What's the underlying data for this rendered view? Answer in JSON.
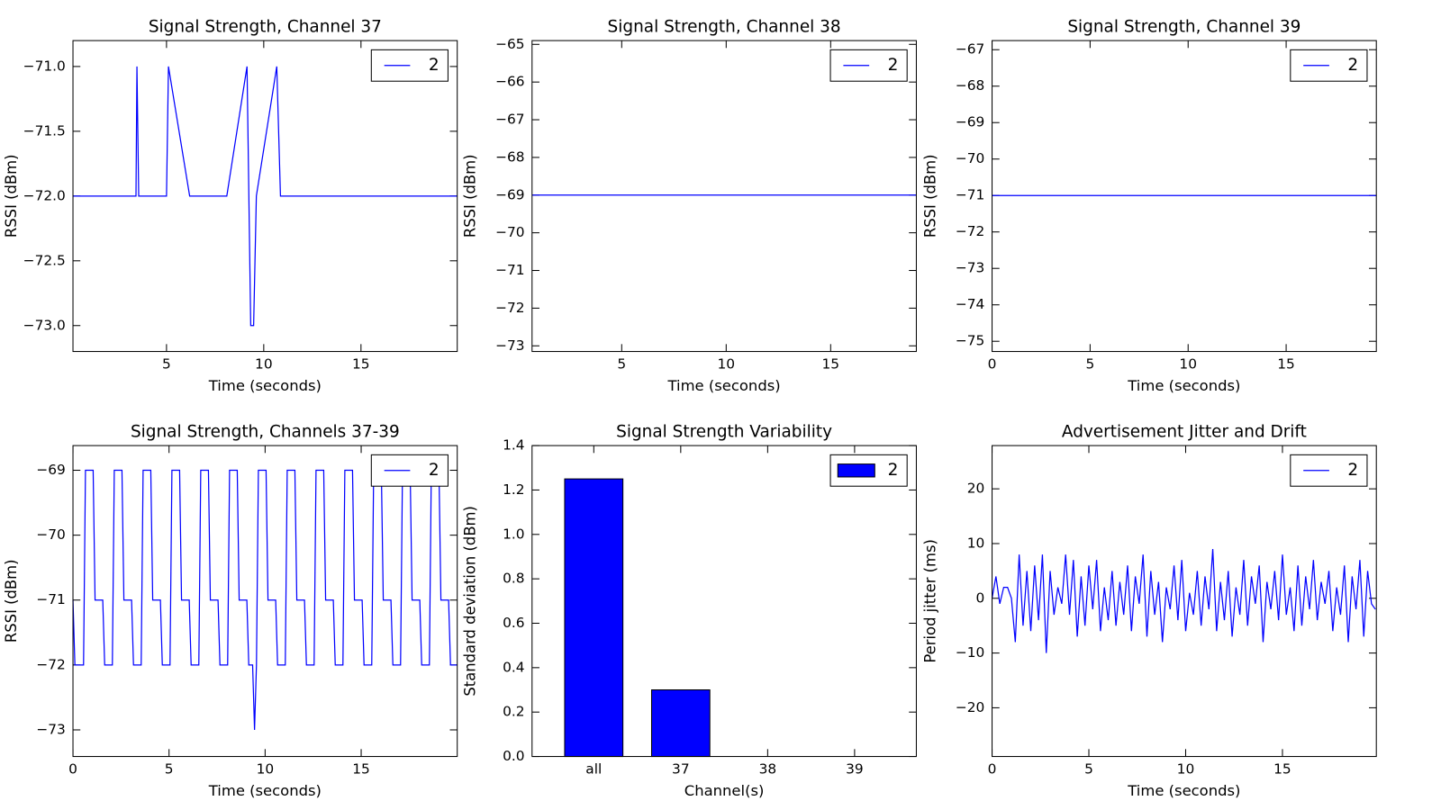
{
  "chart_data": [
    {
      "type": "line",
      "title": "Signal Strength, Channel 37",
      "xlabel": "Time (seconds)",
      "ylabel": "RSSI (dBm)",
      "x": [
        0.19,
        3.43,
        3.48,
        3.57,
        5.0,
        5.1,
        6.19,
        8.1,
        9.14,
        9.33,
        9.48,
        9.62,
        10.67,
        10.86,
        19.95
      ],
      "series": [
        {
          "name": "2",
          "color": "#0000ff",
          "values": [
            -72,
            -72,
            -71,
            -72,
            -72,
            -71,
            -72,
            -72,
            -71,
            -73,
            -73,
            -72,
            -71,
            -72,
            -72
          ]
        }
      ],
      "xlim": [
        0.19,
        19.95
      ],
      "xticks": [
        5,
        10,
        15
      ],
      "ylim": [
        -73.2,
        -70.8
      ],
      "yticks": [
        {
          "value": -71,
          "label": "−71.0"
        },
        {
          "value": -71.5,
          "label": "−71.5"
        },
        {
          "value": -72,
          "label": "−72.0"
        },
        {
          "value": -72.5,
          "label": "−72.5"
        },
        {
          "value": -73,
          "label": "−73.0"
        }
      ],
      "legend": "upper right"
    },
    {
      "type": "line",
      "title": "Signal Strength, Channel 38",
      "xlabel": "Time (seconds)",
      "ylabel": "RSSI (dBm)",
      "x": [
        0.71,
        19.1
      ],
      "series": [
        {
          "name": "2",
          "color": "#0000ff",
          "values": [
            -69,
            -69
          ]
        }
      ],
      "xlim": [
        0.71,
        19.1
      ],
      "xticks": [
        5,
        10,
        15
      ],
      "ylim": [
        -73.15,
        -64.9
      ],
      "yticks": [
        {
          "value": -65,
          "label": "−65"
        },
        {
          "value": -66,
          "label": "−66"
        },
        {
          "value": -67,
          "label": "−67"
        },
        {
          "value": -68,
          "label": "−68"
        },
        {
          "value": -69,
          "label": "−69"
        },
        {
          "value": -70,
          "label": "−70"
        },
        {
          "value": -71,
          "label": "−71"
        },
        {
          "value": -72,
          "label": "−72"
        },
        {
          "value": -73,
          "label": "−73"
        }
      ],
      "legend": "upper right"
    },
    {
      "type": "line",
      "title": "Signal Strength, Channel 39",
      "xlabel": "Time (seconds)",
      "ylabel": "RSSI (dBm)",
      "x": [
        0,
        19.6
      ],
      "series": [
        {
          "name": "2",
          "color": "#0000ff",
          "values": [
            -71,
            -71
          ]
        }
      ],
      "xlim": [
        0,
        19.6
      ],
      "xticks": [
        0,
        5,
        10,
        15
      ],
      "ylim": [
        -75.28,
        -66.75
      ],
      "yticks": [
        {
          "value": -67,
          "label": "−67"
        },
        {
          "value": -68,
          "label": "−68"
        },
        {
          "value": -69,
          "label": "−69"
        },
        {
          "value": -70,
          "label": "−70"
        },
        {
          "value": -71,
          "label": "−71"
        },
        {
          "value": -72,
          "label": "−72"
        },
        {
          "value": -73,
          "label": "−73"
        },
        {
          "value": -74,
          "label": "−74"
        },
        {
          "value": -75,
          "label": "−75"
        }
      ],
      "legend": "upper right"
    },
    {
      "type": "line",
      "title": "Signal Strength, Channels 37-39",
      "xlabel": "Time (seconds)",
      "ylabel": "RSSI (dBm)",
      "x": [
        0,
        0.1,
        0.55,
        0.65,
        1.05,
        1.15,
        1.55,
        1.65,
        2.05,
        2.15,
        2.55,
        2.65,
        3.05,
        3.15,
        3.55,
        3.65,
        4.05,
        4.15,
        4.55,
        4.65,
        5.05,
        5.15,
        5.55,
        5.65,
        6.05,
        6.15,
        6.55,
        6.65,
        7.05,
        7.15,
        7.55,
        7.65,
        8.05,
        8.15,
        8.55,
        8.65,
        9.05,
        9.15,
        9.35,
        9.45,
        9.55,
        9.65,
        10.05,
        10.15,
        10.55,
        10.65,
        11.05,
        11.15,
        11.55,
        11.65,
        12.05,
        12.15,
        12.55,
        12.65,
        13.05,
        13.15,
        13.55,
        13.65,
        14.05,
        14.15,
        14.55,
        14.65,
        15.05,
        15.15,
        15.55,
        15.65,
        16.05,
        16.15,
        16.55,
        16.65,
        17.05,
        17.15,
        17.55,
        17.65,
        18.05,
        18.15,
        18.55,
        18.65,
        19.05,
        19.15,
        19.55,
        19.65,
        20.0
      ],
      "series": [
        {
          "name": "2",
          "color": "#0000ff",
          "values": [
            -71,
            -72,
            -72,
            -69,
            -69,
            -71,
            -71,
            -72,
            -72,
            -69,
            -69,
            -71,
            -71,
            -72,
            -72,
            -69,
            -69,
            -71,
            -71,
            -72,
            -72,
            -69,
            -69,
            -71,
            -71,
            -72,
            -72,
            -69,
            -69,
            -71,
            -71,
            -72,
            -72,
            -69,
            -69,
            -71,
            -71,
            -72,
            -72,
            -73,
            -72,
            -69,
            -69,
            -71,
            -71,
            -72,
            -72,
            -69,
            -69,
            -71,
            -71,
            -72,
            -72,
            -69,
            -69,
            -71,
            -71,
            -72,
            -72,
            -69,
            -69,
            -71,
            -71,
            -72,
            -72,
            -69,
            -69,
            -71,
            -71,
            -72,
            -72,
            -69,
            -69,
            -71,
            -71,
            -72,
            -72,
            -69,
            -69,
            -71,
            -71,
            -72,
            -72
          ]
        }
      ],
      "xlim": [
        0,
        20.0
      ],
      "xticks": [
        0,
        5,
        10,
        15
      ],
      "ylim": [
        -73.41,
        -68.62
      ],
      "yticks": [
        {
          "value": -69,
          "label": "−69"
        },
        {
          "value": -70,
          "label": "−70"
        },
        {
          "value": -71,
          "label": "−71"
        },
        {
          "value": -72,
          "label": "−72"
        },
        {
          "value": -73,
          "label": "−73"
        }
      ],
      "legend": "upper right"
    },
    {
      "type": "bar",
      "title": "Signal Strength Variability",
      "xlabel": "Channel(s)",
      "ylabel": "Standard deviation (dBm)",
      "categories": [
        "all",
        "37",
        "38",
        "39"
      ],
      "series": [
        {
          "name": "2",
          "color": "#0000ff",
          "values": [
            1.25,
            0.3,
            0,
            0
          ]
        }
      ],
      "ylim": [
        0,
        1.4
      ],
      "yticks": [
        {
          "value": 0,
          "label": "0.0"
        },
        {
          "value": 0.2,
          "label": "0.2"
        },
        {
          "value": 0.4,
          "label": "0.4"
        },
        {
          "value": 0.6,
          "label": "0.6"
        },
        {
          "value": 0.8,
          "label": "0.8"
        },
        {
          "value": 1,
          "label": "1.0"
        },
        {
          "value": 1.2,
          "label": "1.2"
        },
        {
          "value": 1.4,
          "label": "1.4"
        }
      ],
      "legend": "upper right"
    },
    {
      "type": "line",
      "title": "Advertisement Jitter and Drift",
      "xlabel": "Time (seconds)",
      "ylabel": "Period jitter (ms)",
      "x": [
        0,
        0.2,
        0.4,
        0.6,
        0.8,
        1,
        1.2,
        1.4,
        1.6,
        1.8,
        2,
        2.2,
        2.4,
        2.6,
        2.8,
        3,
        3.2,
        3.4,
        3.6,
        3.8,
        4,
        4.2,
        4.4,
        4.6,
        4.8,
        5,
        5.2,
        5.4,
        5.6,
        5.8,
        6,
        6.2,
        6.4,
        6.6,
        6.8,
        7,
        7.2,
        7.4,
        7.6,
        7.8,
        8,
        8.2,
        8.4,
        8.6,
        8.8,
        9,
        9.2,
        9.4,
        9.6,
        9.8,
        10,
        10.2,
        10.4,
        10.6,
        10.8,
        11,
        11.2,
        11.4,
        11.6,
        11.8,
        12,
        12.2,
        12.4,
        12.6,
        12.8,
        13,
        13.2,
        13.4,
        13.6,
        13.8,
        14,
        14.2,
        14.4,
        14.6,
        14.8,
        15,
        15.2,
        15.4,
        15.6,
        15.8,
        16,
        16.2,
        16.4,
        16.6,
        16.8,
        17,
        17.2,
        17.4,
        17.6,
        17.8,
        18,
        18.2,
        18.4,
        18.6,
        18.8,
        19,
        19.2,
        19.4,
        19.6,
        19.8
      ],
      "series": [
        {
          "name": "2",
          "color": "#0000ff",
          "values": [
            0,
            4,
            -1,
            2,
            2,
            0,
            -8,
            8,
            -5,
            5,
            -6,
            6,
            -4,
            8,
            -10,
            5,
            -3,
            2,
            -1,
            8,
            -3,
            7,
            -7,
            4,
            -5,
            6,
            -2,
            7,
            -6,
            2,
            -4,
            5,
            -5,
            3,
            -3,
            6,
            -6,
            4,
            -1,
            8,
            -7,
            5,
            -3,
            3,
            -8,
            2,
            -2,
            6,
            -4,
            7,
            -6,
            1,
            -3,
            5,
            -5,
            4,
            -2,
            9,
            -6,
            3,
            -4,
            5,
            -7,
            2,
            -3,
            7,
            -5,
            4,
            -1,
            6,
            -8,
            3,
            -2,
            5,
            -4,
            8,
            -3,
            2,
            -6,
            6,
            -5,
            4,
            -2,
            7,
            -4,
            3,
            -1,
            5,
            -6,
            2,
            -3,
            6,
            -8,
            4,
            -2,
            7,
            -7,
            5,
            -1,
            -2
          ]
        }
      ],
      "xlim": [
        0,
        19.85
      ],
      "xticks": [
        0,
        5,
        10,
        15
      ],
      "ylim": [
        -28.9,
        27.9
      ],
      "yticks": [
        {
          "value": -20,
          "label": "−20"
        },
        {
          "value": -10,
          "label": "−10"
        },
        0,
        10,
        20
      ],
      "legend": "upper right"
    }
  ]
}
